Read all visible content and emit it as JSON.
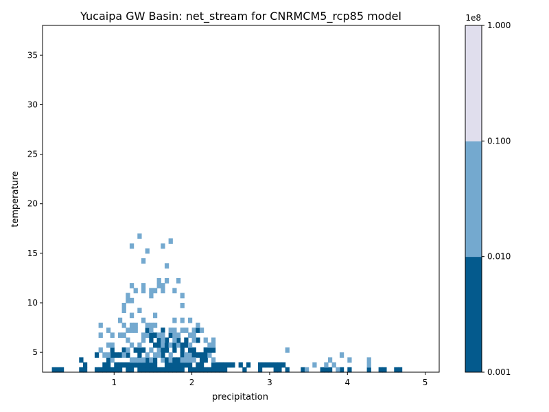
{
  "chart_data": {
    "type": "heatmap",
    "title": "Yucaipa GW Basin: net_stream for CNRMCM5_rcp85 model",
    "xlabel": "precipitation",
    "ylabel": "temperature",
    "xlim": [
      0.08,
      5.18
    ],
    "ylim": [
      3.0,
      38.0
    ],
    "x_ticks": [
      1,
      2,
      3,
      4,
      5
    ],
    "y_ticks": [
      5,
      10,
      15,
      20,
      25,
      30,
      35
    ],
    "grid": false,
    "colorbar": {
      "scale": "log",
      "multiplier_label": "1e8",
      "tick_labels": [
        "0.001",
        "0.010",
        "0.100",
        "1.000"
      ],
      "levels": [
        0.001,
        0.01,
        0.1,
        1.0
      ],
      "colors": [
        "#045a8d",
        "#74a9cf",
        "#e0deed"
      ]
    },
    "bin_size": {
      "x": 0.05,
      "y": 0.5
    },
    "regions": [
      {
        "level": 0,
        "x": [
          0.2,
          0.4
        ],
        "y": [
          3.0,
          3.2
        ],
        "density": 0.6
      },
      {
        "level": 0,
        "x": [
          0.5,
          0.7
        ],
        "y": [
          3.0,
          3.3
        ],
        "density": 0.5
      },
      {
        "level": 0,
        "x": [
          0.55,
          0.8
        ],
        "y": [
          3.0,
          5.0
        ],
        "density": 0.35
      },
      {
        "level": 0,
        "x": [
          0.8,
          2.5
        ],
        "y": [
          3.0,
          4.0
        ],
        "density": 0.85
      },
      {
        "level": 0,
        "x": [
          0.9,
          2.3
        ],
        "y": [
          4.0,
          5.5
        ],
        "density": 0.55
      },
      {
        "level": 0,
        "x": [
          1.4,
          2.1
        ],
        "y": [
          5.5,
          7.5
        ],
        "density": 0.5
      },
      {
        "level": 0,
        "x": [
          2.4,
          3.2
        ],
        "y": [
          3.0,
          3.8
        ],
        "density": 0.45
      },
      {
        "level": 0,
        "x": [
          3.2,
          4.6
        ],
        "y": [
          3.0,
          3.4
        ],
        "density": 0.35
      },
      {
        "level": 0,
        "x": [
          4.6,
          4.7
        ],
        "y": [
          3.0,
          3.2
        ],
        "density": 0.6
      },
      {
        "level": 1,
        "x": [
          0.8,
          2.3
        ],
        "y": [
          4.0,
          8.5
        ],
        "density": 0.32
      },
      {
        "level": 1,
        "x": [
          1.1,
          1.9
        ],
        "y": [
          8.5,
          12.5
        ],
        "density": 0.22
      },
      {
        "level": 1,
        "x": [
          1.2,
          1.8
        ],
        "y": [
          13.5,
          17.0
        ],
        "density": 0.1
      },
      {
        "level": 1,
        "x": [
          3.2,
          4.5
        ],
        "y": [
          3.0,
          5.5
        ],
        "density": 0.08
      }
    ],
    "seed": 12345
  }
}
